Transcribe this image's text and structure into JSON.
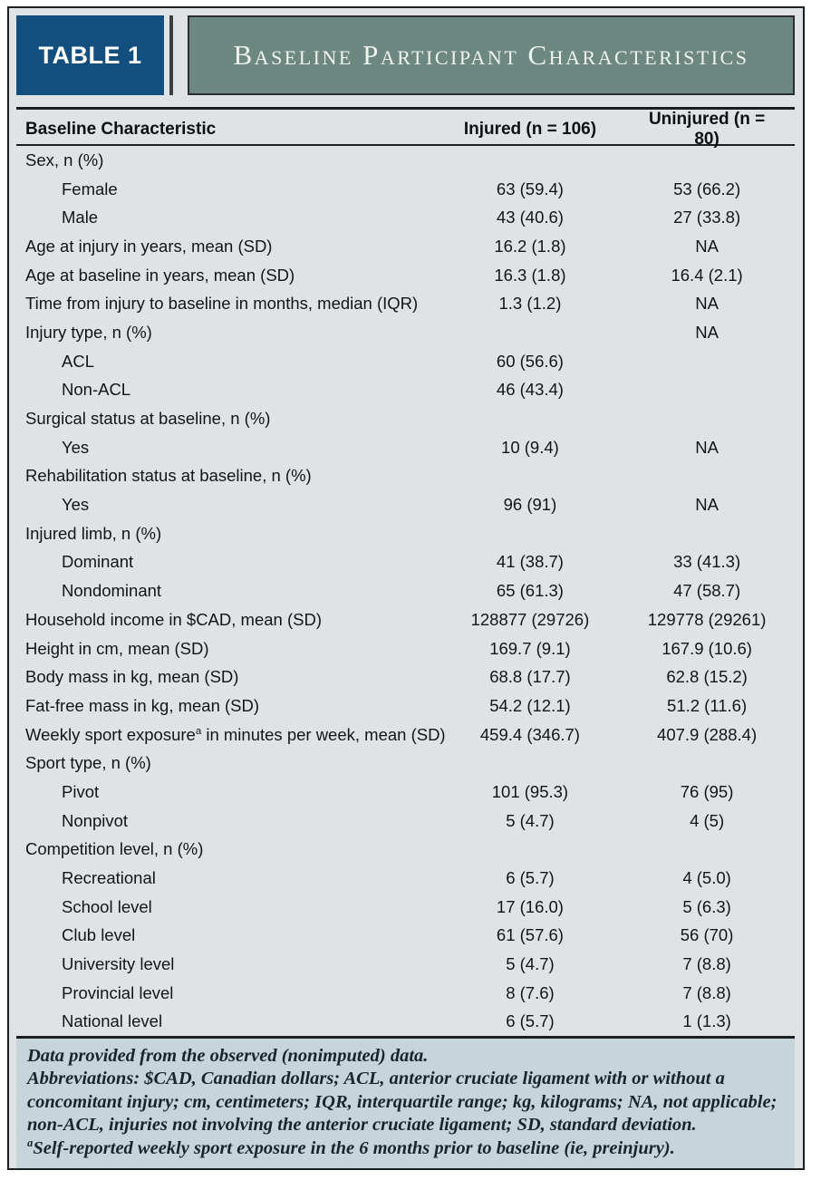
{
  "header": {
    "badge": "TABLE 1",
    "title": "Baseline Participant Characteristics"
  },
  "table": {
    "columns": [
      "Baseline Characteristic",
      "Injured (n = 106)",
      "Uninjured (n = 80)"
    ],
    "rows": [
      {
        "label": "Sex, n (%)",
        "indent": false,
        "injured": "",
        "uninjured": ""
      },
      {
        "label": "Female",
        "indent": true,
        "injured": "63 (59.4)",
        "uninjured": "53 (66.2)"
      },
      {
        "label": "Male",
        "indent": true,
        "injured": "43 (40.6)",
        "uninjured": "27 (33.8)"
      },
      {
        "label": "Age at injury in years, mean (SD)",
        "indent": false,
        "injured": "16.2 (1.8)",
        "uninjured": "NA"
      },
      {
        "label": "Age at baseline in years, mean (SD)",
        "indent": false,
        "injured": "16.3 (1.8)",
        "uninjured": "16.4 (2.1)"
      },
      {
        "label": "Time from injury to baseline in months, median (IQR)",
        "indent": false,
        "injured": "1.3 (1.2)",
        "uninjured": "NA"
      },
      {
        "label": "Injury type, n (%)",
        "indent": false,
        "injured": "",
        "uninjured": "NA"
      },
      {
        "label": "ACL",
        "indent": true,
        "injured": "60 (56.6)",
        "uninjured": ""
      },
      {
        "label": "Non-ACL",
        "indent": true,
        "injured": "46 (43.4)",
        "uninjured": ""
      },
      {
        "label": "Surgical status at baseline, n (%)",
        "indent": false,
        "injured": "",
        "uninjured": ""
      },
      {
        "label": "Yes",
        "indent": true,
        "injured": "10 (9.4)",
        "uninjured": "NA"
      },
      {
        "label": "Rehabilitation status at baseline, n (%)",
        "indent": false,
        "injured": "",
        "uninjured": ""
      },
      {
        "label": "Yes",
        "indent": true,
        "injured": "96 (91)",
        "uninjured": "NA"
      },
      {
        "label": "Injured limb, n (%)",
        "indent": false,
        "injured": "",
        "uninjured": ""
      },
      {
        "label": "Dominant",
        "indent": true,
        "injured": "41 (38.7)",
        "uninjured": "33 (41.3)"
      },
      {
        "label": "Nondominant",
        "indent": true,
        "injured": "65 (61.3)",
        "uninjured": "47 (58.7)"
      },
      {
        "label": "Household income in $CAD, mean (SD)",
        "indent": false,
        "injured": "128877 (29726)",
        "uninjured": "129778 (29261)"
      },
      {
        "label": "Height in cm, mean (SD)",
        "indent": false,
        "injured": "169.7 (9.1)",
        "uninjured": "167.9 (10.6)"
      },
      {
        "label": "Body mass in kg, mean (SD)",
        "indent": false,
        "injured": "68.8 (17.7)",
        "uninjured": "62.8 (15.2)"
      },
      {
        "label": "Fat-free mass in kg, mean (SD)",
        "indent": false,
        "injured": "54.2 (12.1)",
        "uninjured": "51.2 (11.6)"
      },
      {
        "label": "Weekly sport exposure",
        "label_sup": "a",
        "label_after": " in minutes per week, mean (SD)",
        "indent": false,
        "injured": "459.4 (346.7)",
        "uninjured": "407.9 (288.4)"
      },
      {
        "label": "Sport type, n (%)",
        "indent": false,
        "injured": "",
        "uninjured": ""
      },
      {
        "label": "Pivot",
        "indent": true,
        "injured": "101 (95.3)",
        "uninjured": "76 (95)"
      },
      {
        "label": "Nonpivot",
        "indent": true,
        "injured": "5 (4.7)",
        "uninjured": "4 (5)"
      },
      {
        "label": "Competition level, n (%)",
        "indent": false,
        "injured": "",
        "uninjured": ""
      },
      {
        "label": "Recreational",
        "indent": true,
        "injured": "6 (5.7)",
        "uninjured": "4 (5.0)"
      },
      {
        "label": "School level",
        "indent": true,
        "injured": "17 (16.0)",
        "uninjured": "5 (6.3)"
      },
      {
        "label": "Club level",
        "indent": true,
        "injured": "61 (57.6)",
        "uninjured": "56 (70)"
      },
      {
        "label": "University level",
        "indent": true,
        "injured": "5 (4.7)",
        "uninjured": "7 (8.8)"
      },
      {
        "label": "Provincial level",
        "indent": true,
        "injured": "8 (7.6)",
        "uninjured": "7 (8.8)"
      },
      {
        "label": "National level",
        "indent": true,
        "injured": "6 (5.7)",
        "uninjured": "1 (1.3)"
      }
    ]
  },
  "footnotes": [
    {
      "text": "Data provided from the observed (nonimputed) data."
    },
    {
      "text": "Abbreviations: $CAD, Canadian dollars; ACL, anterior cruciate ligament with or without a concomitant injury; cm, centimeters; IQR, interquartile range; kg, kilograms; NA, not applicable; non-ACL, injuries not involving the anterior cruciate ligament; SD, standard deviation."
    },
    {
      "sup": "a",
      "text": "Self-reported weekly sport exposure in the 6 months prior to baseline (ie, preinjury)."
    }
  ],
  "colors": {
    "badge_blue": "#134f7e",
    "banner_green": "#6d8881",
    "body_background": "#e0e3e5",
    "footer_background": "#c7d5da",
    "rule": "#1b1d1f"
  }
}
